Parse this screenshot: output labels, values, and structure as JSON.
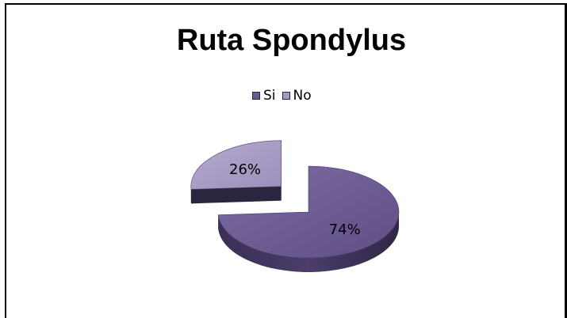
{
  "chart_data": {
    "type": "pie",
    "title": "Ruta Spondylus",
    "categories": [
      "Si",
      "No"
    ],
    "values": [
      74,
      26
    ],
    "data_labels": [
      "74%",
      "26%"
    ],
    "colors": [
      "#6a5a8f",
      "#a69ac2"
    ],
    "legend_position": "top",
    "style": "3d-exploded"
  }
}
